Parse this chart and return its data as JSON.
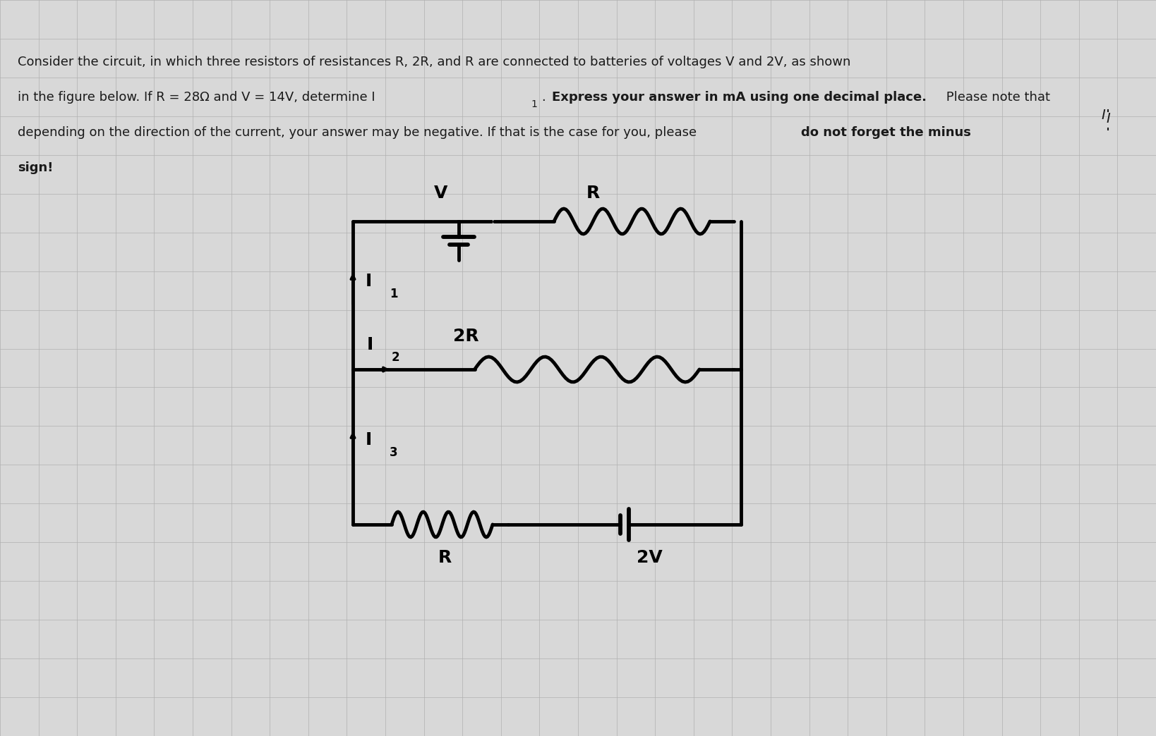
{
  "bg_color": "#d8d8d8",
  "grid_color": "#b0b0b0",
  "text_color": "#1a1a1a",
  "title_line1": "Consider the circuit, in which three resistors of resistances R, 2R, and R are connected to batteries of voltages V and 2V, as shown",
  "title_line2": "in the figure below. If R = 28Ω and V = 14V, determine I",
  "title_line2_sub": "1",
  "title_line2_rest": ". Express your answer in mA using one decimal place.",
  "title_line2_bold": " Please note that",
  "title_line3": "depending on the direction of the current, your answer may be negative. If that is the case for you, please ",
  "title_line3_bold": "do not forget the minus",
  "title_line4_bold": "sign!",
  "cursor_label": "I",
  "fig_width": 16.38,
  "fig_height": 10.44,
  "dpi": 100
}
